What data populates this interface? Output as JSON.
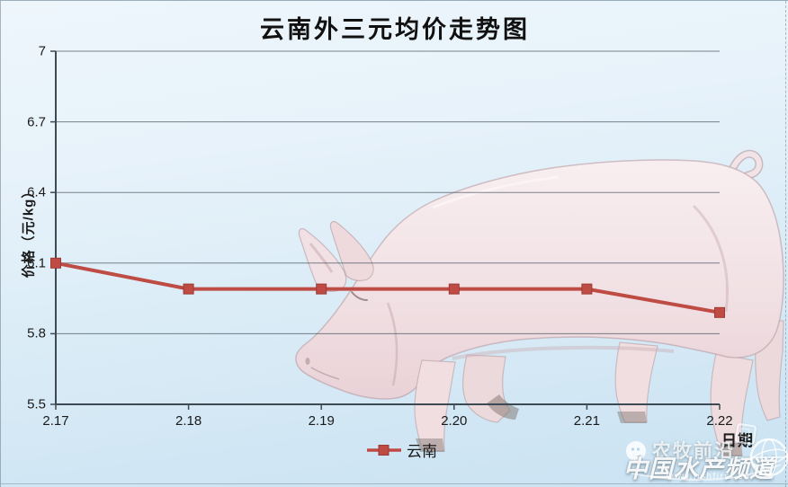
{
  "title": "云南外三元均价走势图",
  "axes": {
    "y_title": "价格（元/kg）",
    "x_title": "日期",
    "y_ticks": [
      "7",
      "6.7",
      "6.4",
      "6.1",
      "5.8",
      "5.5"
    ],
    "x_ticks": [
      "2.17",
      "2.18",
      "2.19",
      "2.20",
      "2.21",
      "2.22"
    ]
  },
  "legend": {
    "label": "云南"
  },
  "watermark": {
    "channel": "农牧前沿",
    "brand": "中国水产频道",
    "url": "www.fishfirst.cn"
  },
  "chart_data": {
    "type": "line",
    "title": "云南外三元均价走势图",
    "x": [
      "2.17",
      "2.18",
      "2.19",
      "2.20",
      "2.21",
      "2.22"
    ],
    "series": [
      {
        "name": "云南",
        "values": [
          6.1,
          5.99,
          5.99,
          5.99,
          5.99,
          5.89
        ],
        "color": "#be4b44",
        "marker": "square"
      }
    ],
    "xlabel": "日期",
    "ylabel": "价格（元/kg）",
    "ylim": [
      5.5,
      7
    ],
    "ytick_interval": 0.3,
    "grid": true,
    "legend_position": "bottom-center",
    "plot_background": "light blue gradient with photo of walking pig behind gridlines"
  },
  "colors": {
    "series_red": "#be4b44",
    "marker_stroke": "#9e3a35",
    "gridline": "#46525c",
    "axis": "#3d4a54",
    "text": "#1a1a1a",
    "background_top": "#ebf4fb",
    "background_bottom": "#c9e2f2"
  }
}
